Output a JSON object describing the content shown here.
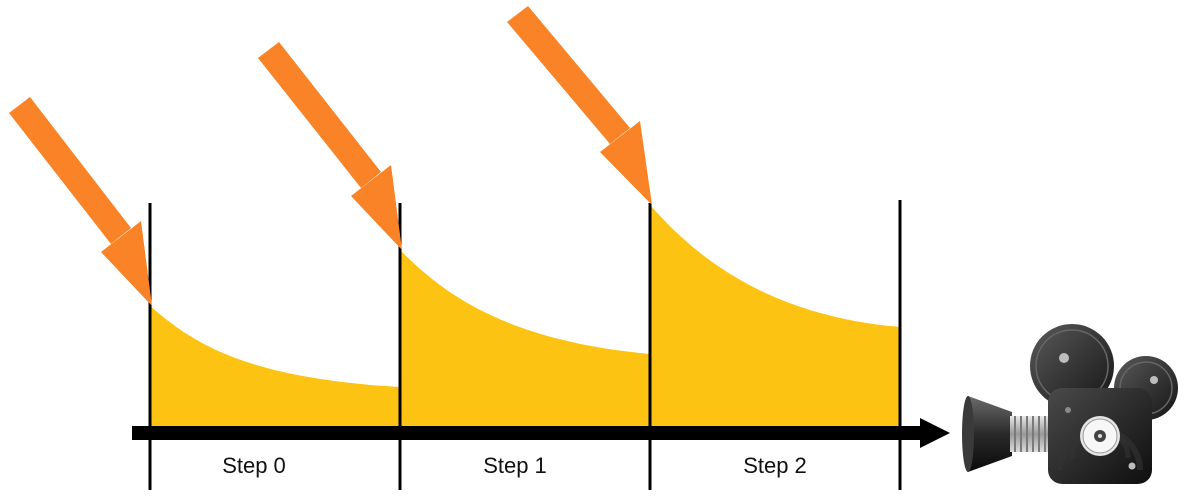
{
  "steps": [
    {
      "label": "Step 0"
    },
    {
      "label": "Step 1"
    },
    {
      "label": "Step 2"
    }
  ],
  "colors": {
    "decay_fill": "#FCC313",
    "arrow": "#F98326",
    "axis": "#000000",
    "divider": "#000000"
  },
  "icons": {
    "camera": "film-camera-icon"
  }
}
